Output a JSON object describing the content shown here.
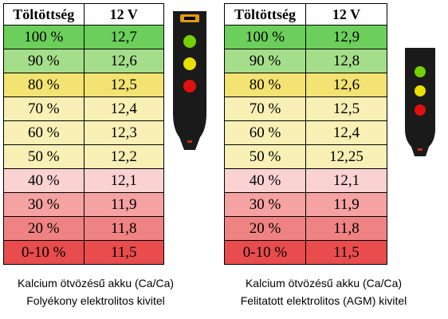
{
  "header": {
    "col1": "Töltöttség",
    "col2": "12 V"
  },
  "palette": {
    "green_dark": "#6dcf5b",
    "green_light": "#a5de8a",
    "yellow_dark": "#f3e372",
    "yellow_light": "#f8f0b5",
    "pink_light": "#fbd2d2",
    "red_light": "#f4a2a2",
    "red_mid": "#ef8383",
    "red_dark": "#e84c4c",
    "led_green": "#76d000",
    "led_yellow": "#e8e000",
    "led_red": "#e01010",
    "device_body": "#1a1a1a",
    "device_cap": "#e39a10"
  },
  "tables": [
    {
      "rows": [
        {
          "pct": "100 %",
          "value": "12,7"
        },
        {
          "pct": "90 %",
          "value": "12,6"
        },
        {
          "pct": "80 %",
          "value": "12,5"
        },
        {
          "pct": "70 %",
          "value": "12,4"
        },
        {
          "pct": "60 %",
          "value": "12,3"
        },
        {
          "pct": "50 %",
          "value": "12,2"
        },
        {
          "pct": "40 %",
          "value": "12,1"
        },
        {
          "pct": "30 %",
          "value": "11,9"
        },
        {
          "pct": "20 %",
          "value": "11,8"
        },
        {
          "pct": "0-10 %",
          "value": "11,5"
        }
      ],
      "caption_line1": "Kalcium ötvözésű akku (Ca/Ca)",
      "caption_line2": "Folyékony elektrolitos kivitel"
    },
    {
      "rows": [
        {
          "pct": "100 %",
          "value": "12,9"
        },
        {
          "pct": "90 %",
          "value": "12,8"
        },
        {
          "pct": "80 %",
          "value": "12,6"
        },
        {
          "pct": "70 %",
          "value": "12,5"
        },
        {
          "pct": "60 %",
          "value": "12,4"
        },
        {
          "pct": "50 %",
          "value": "12,25"
        },
        {
          "pct": "40 %",
          "value": "12,1"
        },
        {
          "pct": "30 %",
          "value": "11,9"
        },
        {
          "pct": "20 %",
          "value": "11,8"
        },
        {
          "pct": "0-10 %",
          "value": "11,5"
        }
      ],
      "caption_line1": "Kalcium ötvözésű akku (Ca/Ca)",
      "caption_line2": "Felitatott elektrolitos (AGM) kivitel"
    }
  ]
}
